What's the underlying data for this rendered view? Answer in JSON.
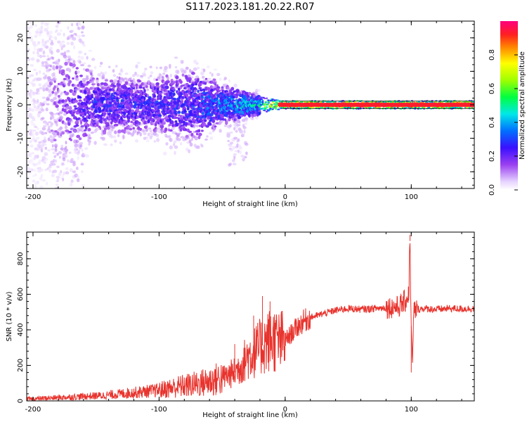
{
  "title": "S117.2023.181.20.22.R07",
  "chart_data": [
    {
      "type": "heatmap",
      "xlabel": "Height of straight line (km)",
      "ylabel": "Frequency (Hz)",
      "xlim": [
        -205,
        150
      ],
      "ylim": [
        -25,
        25
      ],
      "xticks": [
        -200,
        -100,
        0,
        100
      ],
      "yticks": [
        -20,
        -10,
        0,
        10,
        20
      ],
      "colorbar": {
        "label": "Normalized spectral amplitude",
        "range": [
          0,
          1
        ],
        "ticks": [
          "0.0",
          "0.2",
          "0.4",
          "0.6",
          "0.8"
        ],
        "colormap": "rainbow (white → purple → blue → cyan → green → yellow → red → magenta)"
      },
      "description_points": [
        {
          "x": -200,
          "spread_hz": 22,
          "amplitude": 0.05
        },
        {
          "x": -150,
          "spread_hz": 6,
          "amplitude": 0.25
        },
        {
          "x": -100,
          "spread_hz": 6,
          "amplitude": 0.25
        },
        {
          "x": -75,
          "spread_hz": 8,
          "amplitude": 0.25
        },
        {
          "x": -50,
          "spread_hz": 4,
          "amplitude": 0.35
        },
        {
          "x": -20,
          "spread_hz": 2,
          "amplitude": 0.45
        },
        {
          "x": 0,
          "spread_hz": 1,
          "amplitude": 0.9
        },
        {
          "x": 50,
          "spread_hz": 1,
          "amplitude": 0.9
        },
        {
          "x": 100,
          "spread_hz": 1,
          "amplitude": 0.9
        },
        {
          "x": 150,
          "spread_hz": 1,
          "amplitude": 0.9
        }
      ]
    },
    {
      "type": "line",
      "xlabel": "Height of straight line (km)",
      "ylabel": "SNR (10 * v/v)",
      "xlim": [
        -205,
        150
      ],
      "ylim": [
        0,
        950
      ],
      "xticks": [
        -200,
        -100,
        0,
        100
      ],
      "yticks": [
        0,
        200,
        400,
        600,
        800
      ],
      "series": [
        {
          "color": "#e8332d",
          "x": [
            -205,
            -190,
            -175,
            -160,
            -145,
            -130,
            -115,
            -100,
            -85,
            -70,
            -60,
            -50,
            -40,
            -35,
            -30,
            -25,
            -20,
            -15,
            -10,
            -5,
            0,
            5,
            10,
            15,
            20,
            30,
            40,
            50,
            60,
            70,
            80,
            90,
            95,
            98,
            99,
            100,
            101,
            102,
            105,
            110,
            120,
            130,
            140,
            150
          ],
          "y": [
            10,
            15,
            20,
            25,
            30,
            40,
            50,
            60,
            80,
            95,
            110,
            130,
            160,
            200,
            250,
            270,
            300,
            330,
            350,
            330,
            340,
            380,
            420,
            450,
            470,
            490,
            510,
            520,
            515,
            520,
            525,
            530,
            560,
            600,
            900,
            420,
            200,
            510,
            515,
            520,
            515,
            520,
            518,
            520
          ],
          "spikes": [
            {
              "x": -40,
              "y": 320
            },
            {
              "x": -25,
              "y": 480
            },
            {
              "x": -18,
              "y": 590
            },
            {
              "x": -12,
              "y": 560
            },
            {
              "x": -8,
              "y": 440
            },
            {
              "x": 99,
              "y": 935
            },
            {
              "x": 100,
              "y": 160
            }
          ]
        }
      ]
    }
  ]
}
